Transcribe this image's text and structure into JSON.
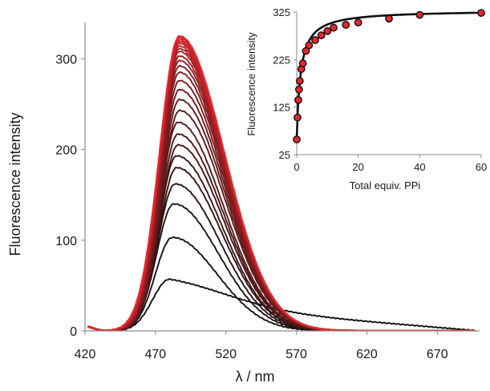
{
  "chart_data": [
    {
      "type": "line",
      "title": "",
      "xlabel": "λ / nm",
      "ylabel": "Fluorescence  intensity",
      "xlim": [
        420,
        700
      ],
      "ylim": [
        0,
        340
      ],
      "xticks": [
        420,
        470,
        520,
        570,
        620,
        670
      ],
      "yticks": [
        0,
        100,
        200,
        300
      ],
      "grid": false,
      "legend": "none",
      "color_start": "#111111",
      "color_end": "#e8262c",
      "peak_wavelengths": [
        480,
        482,
        483,
        484,
        485,
        485,
        486,
        486,
        486,
        487,
        487,
        487,
        487,
        487,
        487,
        487,
        487,
        487,
        487,
        487,
        487,
        487,
        487,
        487,
        487,
        487
      ],
      "peak_intensities": [
        57,
        103,
        140,
        162,
        180,
        193,
        205,
        217,
        230,
        243,
        255,
        266,
        276,
        285,
        292,
        298,
        303,
        308,
        311,
        314,
        317,
        319,
        321,
        323,
        324,
        325
      ]
    },
    {
      "type": "scatter",
      "title": "",
      "xlabel": "Total equiv. PPi",
      "ylabel": "Fluorescence intensity",
      "xlim": [
        0,
        60
      ],
      "ylim": [
        25,
        325
      ],
      "xticks": [
        0,
        20,
        40,
        60
      ],
      "yticks": [
        25,
        125,
        225,
        325
      ],
      "grid": false,
      "marker_color": "#e8262c",
      "fit_color": "#111111",
      "x": [
        0,
        0.25,
        0.5,
        0.75,
        1,
        1.5,
        2,
        3,
        4,
        6,
        8,
        10,
        12,
        16,
        20,
        30,
        40,
        60
      ],
      "y": [
        57,
        103,
        140,
        162,
        180,
        205,
        217,
        243,
        255,
        266,
        276,
        285,
        292,
        298,
        303,
        311,
        319,
        323
      ]
    }
  ]
}
